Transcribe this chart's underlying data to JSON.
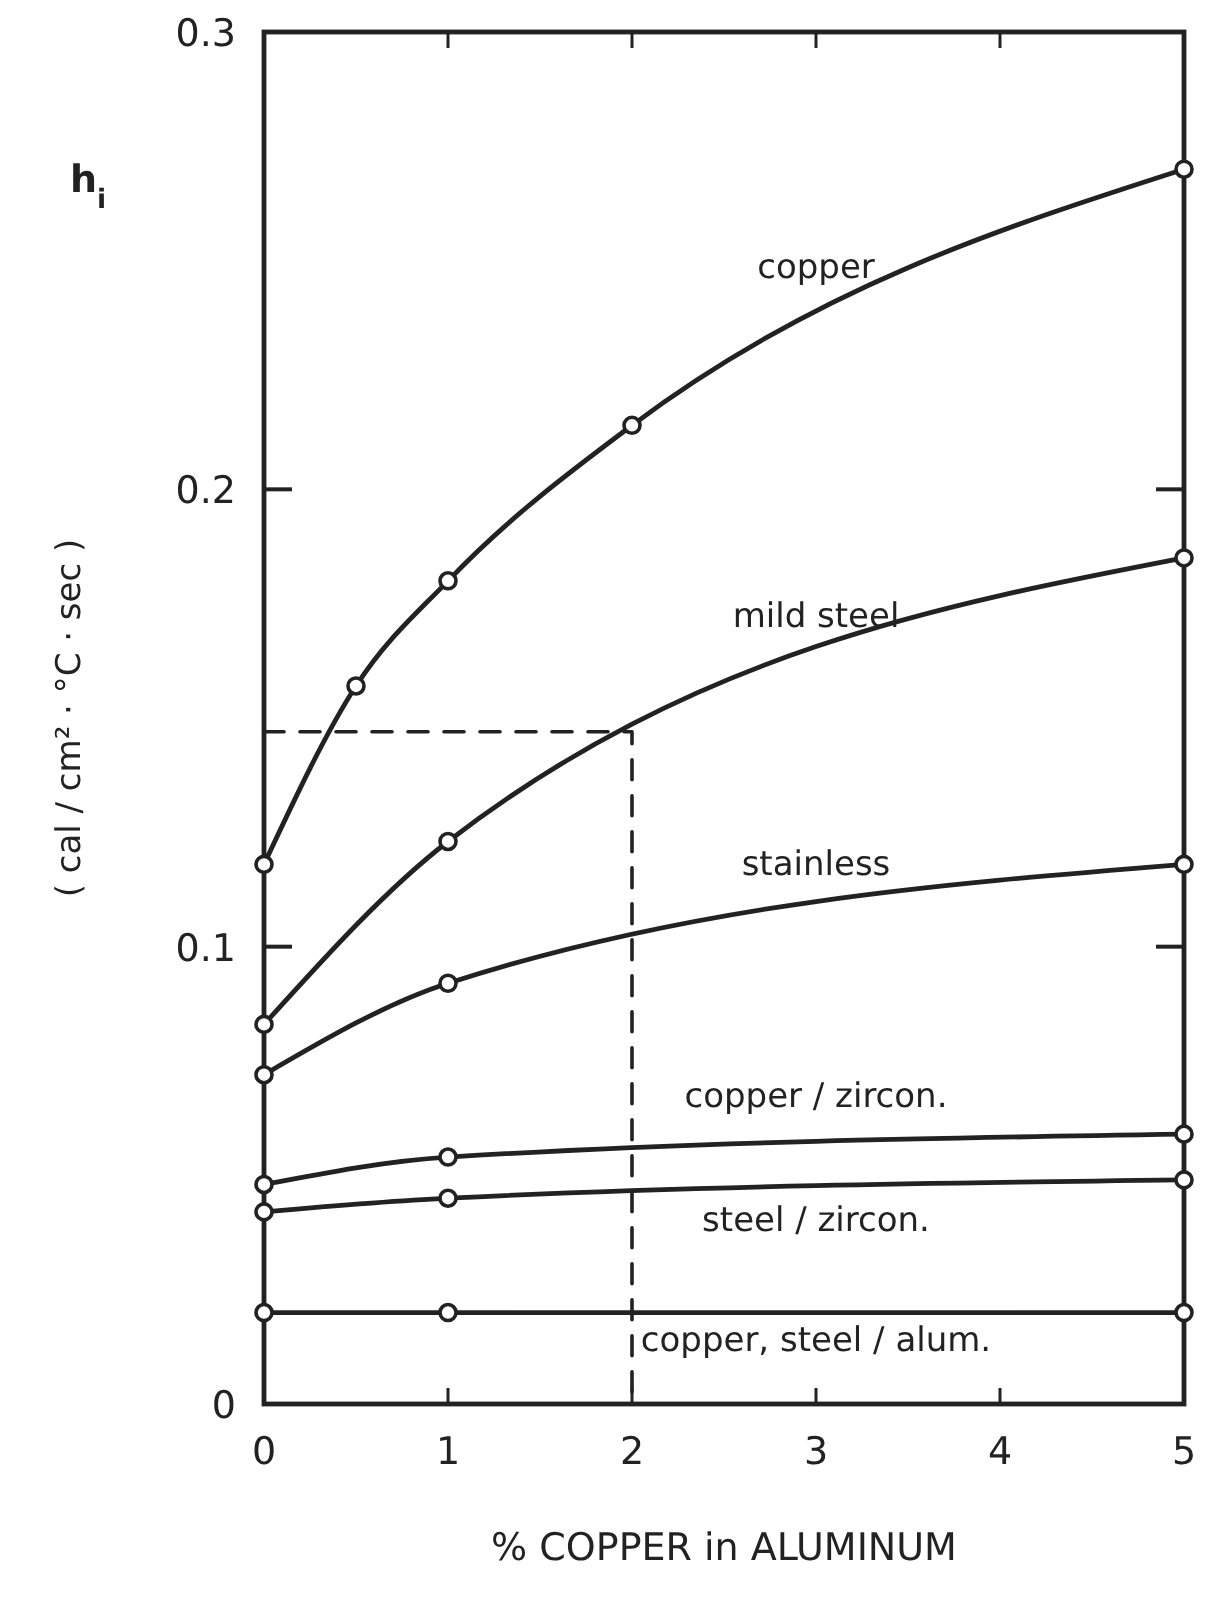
{
  "chart_data": {
    "type": "line",
    "ylabel": "( cal / cm² · °C · sec )",
    "xlabel": "% COPPER in ALUMINUM",
    "annotations": [
      "h$_{i}$"
    ],
    "xlim": [
      0,
      5
    ],
    "xticks": [
      0,
      1,
      2,
      3,
      4,
      5
    ],
    "ylim": [
      0,
      0.3
    ],
    "yticks": [
      0,
      0.1,
      0.2,
      0.3
    ],
    "grid": false,
    "marker": "circle",
    "line_style": "solid",
    "series": [
      {
        "name": "copper",
        "color": "#222222",
        "x": [
          0,
          0.5,
          1,
          2,
          5
        ],
        "values": [
          0.118,
          0.157,
          0.18,
          0.214,
          0.27
        ]
      },
      {
        "name": "mild steel",
        "color": "#222222",
        "x": [
          0,
          1,
          5
        ],
        "values": [
          0.083,
          0.123,
          0.185
        ]
      },
      {
        "name": "stainless",
        "color": "#222222",
        "x": [
          0,
          1,
          5
        ],
        "values": [
          0.072,
          0.092,
          0.118
        ]
      },
      {
        "name": "copper / zircon.",
        "color": "#222222",
        "x": [
          0,
          1,
          5
        ],
        "values": [
          0.048,
          0.054,
          0.059
        ]
      },
      {
        "name": "steel / zircon.",
        "color": "#222222",
        "x": [
          0,
          1,
          5
        ],
        "values": [
          0.042,
          0.045,
          0.049
        ]
      },
      {
        "name": "copper, steel / alum.",
        "color": "#222222",
        "x": [
          0,
          1,
          5
        ],
        "values": [
          0.02,
          0.02,
          0.02
        ]
      },
      {
        "color": "#222222",
        "x": [
          0,
          2,
          2
        ],
        "values": [
          0.147,
          0.147,
          0
        ],
        "marker": "none",
        "line_style": "dashed"
      }
    ]
  }
}
